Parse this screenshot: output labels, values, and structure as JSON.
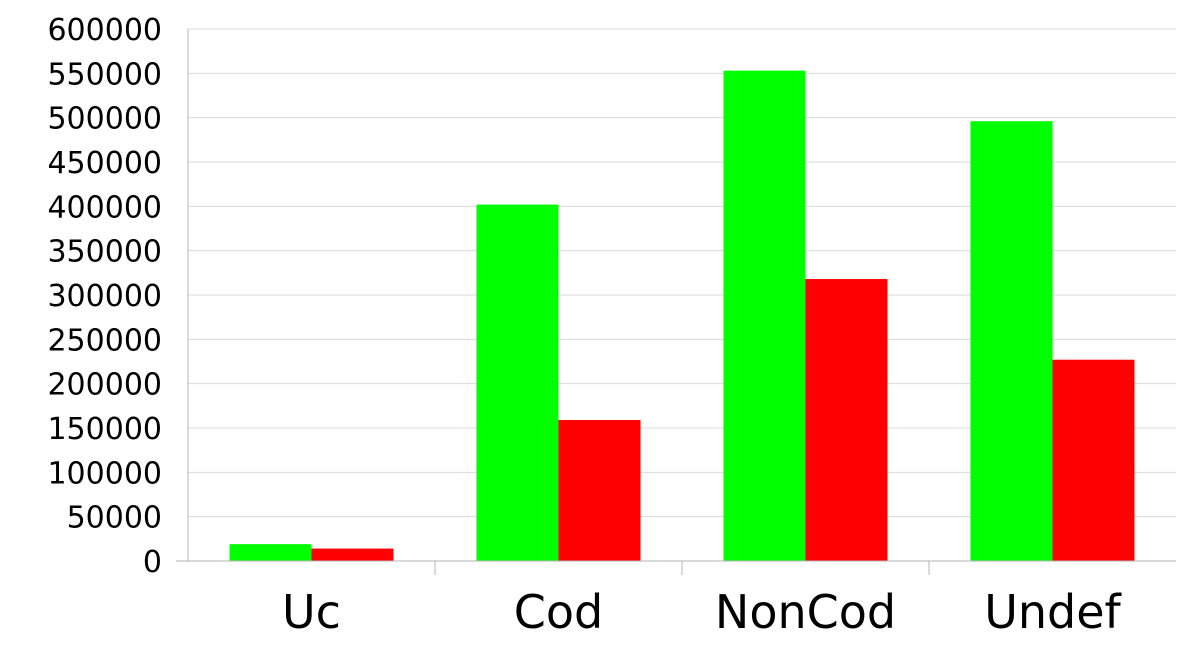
{
  "chart_data": {
    "type": "bar",
    "categories": [
      "Uc",
      "Cod",
      "NonCod",
      "Undef"
    ],
    "series": [
      {
        "color": "#00ff00",
        "values": [
          19000,
          402000,
          553000,
          496000
        ]
      },
      {
        "color": "#ff0000",
        "values": [
          14000,
          159000,
          318000,
          227000
        ]
      }
    ],
    "ylim": [
      0,
      600000
    ],
    "ytick_step": 50000,
    "grid": "horizontal",
    "legend": "none"
  }
}
